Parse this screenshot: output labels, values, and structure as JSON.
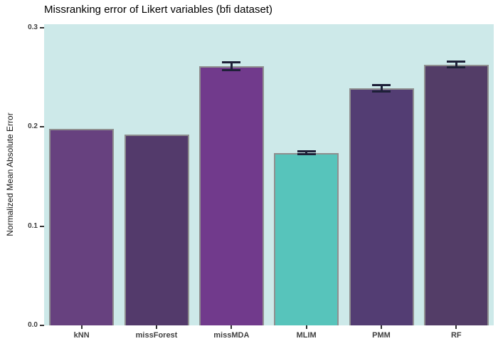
{
  "chart": {
    "title": "Missranking error of Likert variables (bfi dataset)",
    "ylabel": "Normalized Mean Absolute Error"
  },
  "chart_data": {
    "type": "bar",
    "title": "Missranking error of Likert variables (bfi dataset)",
    "xlabel": "",
    "ylabel": "Normalized Mean Absolute Error",
    "categories": [
      "kNN",
      "missForest",
      "missMDA",
      "MLIM",
      "PMM",
      "RF"
    ],
    "values": [
      0.198,
      0.192,
      0.261,
      0.174,
      0.239,
      0.263
    ],
    "errors": [
      null,
      null,
      0.004,
      0.0015,
      0.0035,
      0.003
    ],
    "bar_colors": [
      "#67417f",
      "#533a6b",
      "#713a8c",
      "#57c4bb",
      "#533d73",
      "#533d67"
    ],
    "bar_border_color": "#8f8f8f",
    "errorbar_color": "#1e2038",
    "panel_background": "#cde9e9",
    "tick_color": "#333333",
    "y_ticks": [
      0,
      0.1,
      0.2,
      0.3
    ],
    "y_tick_labels": [
      "0.0",
      "0.1",
      "0.2",
      "0.3"
    ],
    "ylim": [
      0,
      0.3036
    ],
    "grid": false,
    "legend": "none"
  }
}
